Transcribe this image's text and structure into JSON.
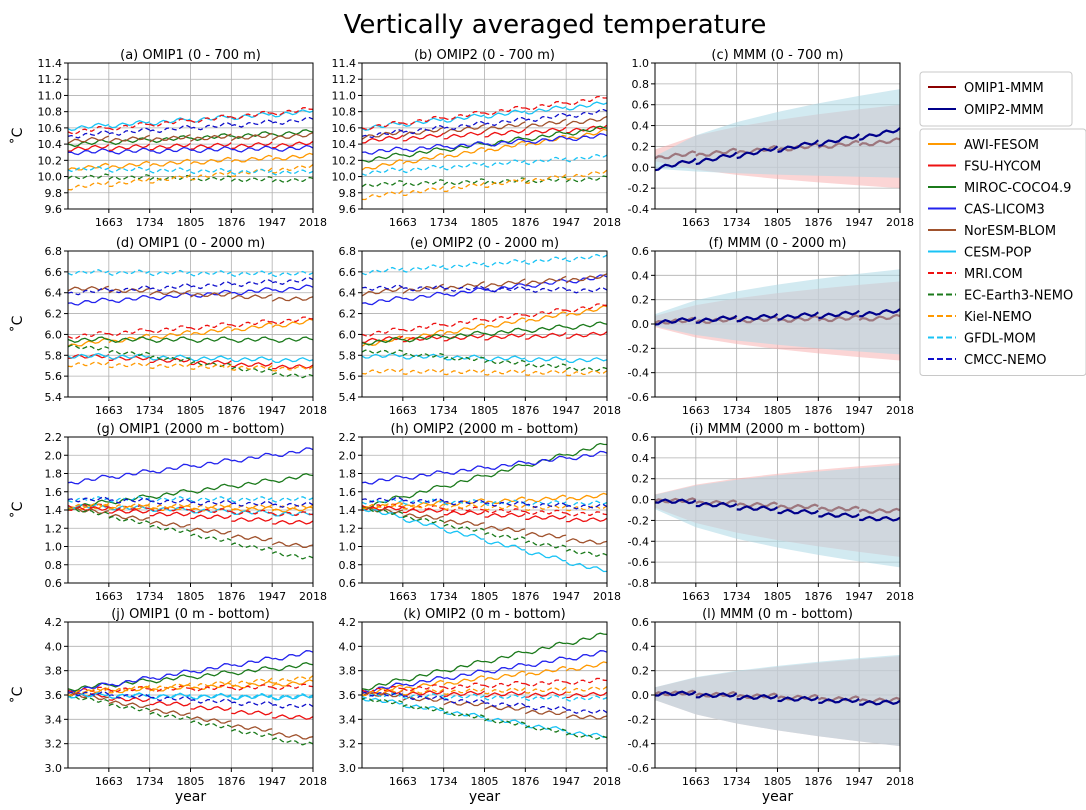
{
  "title": "Vertically averaged temperature",
  "xlabel": "year",
  "years": [
    1663,
    1734,
    1805,
    1876,
    1947,
    2018
  ],
  "xlim": [
    1592,
    2018
  ],
  "colors": {
    "AWI-FESOM": "#ff9900",
    "FSU-HYCOM": "#ee1111",
    "MIROC-COCO4.9": "#1b7a1b",
    "CAS-LICOM3": "#2222ee",
    "NorESM-BLOM": "#a0522d",
    "CESM-POP": "#19c3f5",
    "MRI.COM": "#ee1111",
    "EC-Earth3-NEMO": "#1b7a1b",
    "Kiel-NEMO": "#ff9900",
    "GFDL-MOM": "#19c3f5",
    "CMCC-NEMO": "#1111cc",
    "OMIP1-MMM": "#8b0000",
    "OMIP2-MMM": "#00008b",
    "omip1_spread": "#f7b2b2",
    "omip2_spread": "#add8e6"
  },
  "legend": {
    "mmm": [
      {
        "name": "OMIP1-MMM",
        "dash": false
      },
      {
        "name": "OMIP2-MMM",
        "dash": false
      }
    ],
    "models": [
      {
        "name": "AWI-FESOM",
        "dash": false
      },
      {
        "name": "FSU-HYCOM",
        "dash": false
      },
      {
        "name": "MIROC-COCO4.9",
        "dash": false
      },
      {
        "name": "CAS-LICOM3",
        "dash": false
      },
      {
        "name": "NorESM-BLOM",
        "dash": false
      },
      {
        "name": "CESM-POP",
        "dash": false
      },
      {
        "name": "MRI.COM",
        "dash": true
      },
      {
        "name": "EC-Earth3-NEMO",
        "dash": true
      },
      {
        "name": "Kiel-NEMO",
        "dash": true
      },
      {
        "name": "GFDL-MOM",
        "dash": true
      },
      {
        "name": "CMCC-NEMO",
        "dash": true
      }
    ]
  },
  "chart_data": [
    {
      "type": "line",
      "title": "(a) OMIP1 (0 - 700 m)",
      "ylabel": "˚C",
      "ylim": [
        9.6,
        11.4
      ],
      "yticks": [
        9.6,
        9.8,
        10.0,
        10.2,
        10.4,
        10.6,
        10.8,
        11.0,
        11.2,
        11.4
      ],
      "xlabel": "",
      "series": [
        {
          "name": "AWI-FESOM",
          "start": 10.1,
          "end": 10.25,
          "cycles": 6
        },
        {
          "name": "FSU-HYCOM",
          "start": 10.35,
          "end": 10.4,
          "cycles": 6
        },
        {
          "name": "MIROC-COCO4.9",
          "start": 10.4,
          "end": 10.55,
          "cycles": 6
        },
        {
          "name": "CAS-LICOM3",
          "start": 10.3,
          "end": 10.35,
          "cycles": 6
        },
        {
          "name": "NorESM-BLOM",
          "start": 10.45,
          "end": 10.5,
          "cycles": 6
        },
        {
          "name": "CESM-POP",
          "start": 10.6,
          "end": 10.8,
          "cycles": 6
        },
        {
          "name": "MRI.COM",
          "start": 10.55,
          "end": 10.83,
          "cycles": 6
        },
        {
          "name": "EC-Earth3-NEMO",
          "start": 10.0,
          "end": 9.95,
          "cycles": 6
        },
        {
          "name": "Kiel-NEMO",
          "start": 9.87,
          "end": 10.12,
          "cycles": 6
        },
        {
          "name": "GFDL-MOM",
          "start": 10.1,
          "end": 10.05,
          "cycles": 6
        },
        {
          "name": "CMCC-NEMO",
          "start": 10.5,
          "end": 10.7,
          "cycles": 6
        }
      ]
    },
    {
      "type": "line",
      "title": "(b) OMIP2 (0 - 700 m)",
      "ylabel": "",
      "ylim": [
        9.6,
        11.4
      ],
      "yticks": [
        9.6,
        9.8,
        10.0,
        10.2,
        10.4,
        10.6,
        10.8,
        11.0,
        11.2,
        11.4
      ],
      "xlabel": "",
      "series": [
        {
          "name": "AWI-FESOM",
          "start": 10.1,
          "end": 10.55,
          "cycles": 6
        },
        {
          "name": "FSU-HYCOM",
          "start": 10.45,
          "end": 10.6,
          "cycles": 6
        },
        {
          "name": "MIROC-COCO4.9",
          "start": 10.2,
          "end": 10.6,
          "cycles": 6
        },
        {
          "name": "CAS-LICOM3",
          "start": 10.3,
          "end": 10.5,
          "cycles": 6
        },
        {
          "name": "NorESM-BLOM",
          "start": 10.5,
          "end": 10.7,
          "cycles": 6
        },
        {
          "name": "CESM-POP",
          "start": 10.6,
          "end": 10.9,
          "cycles": 6
        },
        {
          "name": "MRI.COM",
          "start": 10.6,
          "end": 10.97,
          "cycles": 6
        },
        {
          "name": "EC-Earth3-NEMO",
          "start": 9.9,
          "end": 9.97,
          "cycles": 6
        },
        {
          "name": "Kiel-NEMO",
          "start": 9.75,
          "end": 10.05,
          "cycles": 6
        },
        {
          "name": "GFDL-MOM",
          "start": 10.05,
          "end": 10.25,
          "cycles": 6
        },
        {
          "name": "CMCC-NEMO",
          "start": 10.5,
          "end": 10.8,
          "cycles": 6
        }
      ]
    },
    {
      "type": "area",
      "title": "(c) MMM (0 - 700 m)",
      "ylabel": "",
      "ylim": [
        -0.4,
        1.0
      ],
      "yticks": [
        -0.4,
        -0.2,
        0.0,
        0.2,
        0.4,
        0.6,
        0.8,
        1.0
      ],
      "xlabel": "",
      "series": [
        {
          "name": "OMIP1-MMM",
          "start": 0.1,
          "end": 0.25,
          "cycles": 6,
          "spread_lo": -0.2,
          "spread_hi": 0.6
        },
        {
          "name": "OMIP2-MMM",
          "start": 0.0,
          "end": 0.35,
          "cycles": 6,
          "spread_lo": -0.1,
          "spread_hi": 0.75
        }
      ]
    },
    {
      "type": "line",
      "title": "(d) OMIP1 (0 - 2000 m)",
      "ylabel": "˚C",
      "ylim": [
        5.4,
        6.8
      ],
      "yticks": [
        5.4,
        5.6,
        5.8,
        6.0,
        6.2,
        6.4,
        6.6,
        6.8
      ],
      "xlabel": "",
      "series": [
        {
          "name": "AWI-FESOM",
          "start": 5.9,
          "end": 6.12,
          "cycles": 6
        },
        {
          "name": "FSU-HYCOM",
          "start": 5.8,
          "end": 5.68,
          "cycles": 6
        },
        {
          "name": "MIROC-COCO4.9",
          "start": 5.95,
          "end": 5.95,
          "cycles": 6
        },
        {
          "name": "CAS-LICOM3",
          "start": 6.3,
          "end": 6.45,
          "cycles": 6
        },
        {
          "name": "NorESM-BLOM",
          "start": 6.45,
          "end": 6.33,
          "cycles": 6
        },
        {
          "name": "CESM-POP",
          "start": 5.8,
          "end": 5.75,
          "cycles": 6
        },
        {
          "name": "MRI.COM",
          "start": 5.98,
          "end": 6.15,
          "cycles": 6
        },
        {
          "name": "EC-Earth3-NEMO",
          "start": 5.9,
          "end": 5.58,
          "cycles": 6
        },
        {
          "name": "Kiel-NEMO",
          "start": 5.72,
          "end": 5.67,
          "cycles": 6
        },
        {
          "name": "GFDL-MOM",
          "start": 6.6,
          "end": 6.58,
          "cycles": 6
        },
        {
          "name": "CMCC-NEMO",
          "start": 6.4,
          "end": 6.52,
          "cycles": 6
        }
      ]
    },
    {
      "type": "line",
      "title": "(e) OMIP2 (0 - 2000 m)",
      "ylabel": "",
      "ylim": [
        5.4,
        6.8
      ],
      "yticks": [
        5.4,
        5.6,
        5.8,
        6.0,
        6.2,
        6.4,
        6.6,
        6.8
      ],
      "xlabel": "",
      "series": [
        {
          "name": "AWI-FESOM",
          "start": 5.9,
          "end": 6.25,
          "cycles": 6
        },
        {
          "name": "FSU-HYCOM",
          "start": 5.95,
          "end": 6.0,
          "cycles": 6
        },
        {
          "name": "MIROC-COCO4.9",
          "start": 5.92,
          "end": 6.1,
          "cycles": 6
        },
        {
          "name": "CAS-LICOM3",
          "start": 6.3,
          "end": 6.55,
          "cycles": 6
        },
        {
          "name": "NorESM-BLOM",
          "start": 6.4,
          "end": 6.55,
          "cycles": 6
        },
        {
          "name": "CESM-POP",
          "start": 5.8,
          "end": 5.75,
          "cycles": 6
        },
        {
          "name": "MRI.COM",
          "start": 6.0,
          "end": 6.28,
          "cycles": 6
        },
        {
          "name": "EC-Earth3-NEMO",
          "start": 5.85,
          "end": 5.65,
          "cycles": 6
        },
        {
          "name": "Kiel-NEMO",
          "start": 5.65,
          "end": 5.63,
          "cycles": 6
        },
        {
          "name": "GFDL-MOM",
          "start": 6.6,
          "end": 6.75,
          "cycles": 6
        },
        {
          "name": "CMCC-NEMO",
          "start": 6.45,
          "end": 6.42,
          "cycles": 6
        }
      ]
    },
    {
      "type": "area",
      "title": "(f) MMM (0 - 2000 m)",
      "ylabel": "",
      "ylim": [
        -0.6,
        0.6
      ],
      "yticks": [
        -0.6,
        -0.4,
        -0.2,
        0.0,
        0.2,
        0.4,
        0.6
      ],
      "xlabel": "",
      "series": [
        {
          "name": "OMIP1-MMM",
          "start": 0.02,
          "end": 0.05,
          "cycles": 6,
          "spread_lo": -0.3,
          "spread_hi": 0.35
        },
        {
          "name": "OMIP2-MMM",
          "start": 0.02,
          "end": 0.1,
          "cycles": 6,
          "spread_lo": -0.25,
          "spread_hi": 0.45
        }
      ]
    },
    {
      "type": "line",
      "title": "(g) OMIP1 (2000 m - bottom)",
      "ylabel": "˚C",
      "ylim": [
        0.6,
        2.2
      ],
      "yticks": [
        0.6,
        0.8,
        1.0,
        1.2,
        1.4,
        1.6,
        1.8,
        2.0,
        2.2
      ],
      "xlabel": "",
      "series": [
        {
          "name": "AWI-FESOM",
          "start": 1.43,
          "end": 1.4,
          "cycles": 6
        },
        {
          "name": "FSU-HYCOM",
          "start": 1.43,
          "end": 1.25,
          "cycles": 6
        },
        {
          "name": "MIROC-COCO4.9",
          "start": 1.43,
          "end": 1.78,
          "cycles": 6
        },
        {
          "name": "CAS-LICOM3",
          "start": 1.7,
          "end": 2.06,
          "cycles": 6
        },
        {
          "name": "NorESM-BLOM",
          "start": 1.43,
          "end": 0.98,
          "cycles": 6
        },
        {
          "name": "CESM-POP",
          "start": 1.45,
          "end": 1.35,
          "cycles": 6
        },
        {
          "name": "MRI.COM",
          "start": 1.45,
          "end": 1.35,
          "cycles": 6
        },
        {
          "name": "EC-Earth3-NEMO",
          "start": 1.43,
          "end": 0.85,
          "cycles": 6
        },
        {
          "name": "Kiel-NEMO",
          "start": 1.45,
          "end": 1.43,
          "cycles": 6
        },
        {
          "name": "GFDL-MOM",
          "start": 1.52,
          "end": 1.52,
          "cycles": 6
        },
        {
          "name": "CMCC-NEMO",
          "start": 1.52,
          "end": 1.45,
          "cycles": 6
        }
      ]
    },
    {
      "type": "line",
      "title": "(h) OMIP2 (2000 m - bottom)",
      "ylabel": "",
      "ylim": [
        0.6,
        2.2
      ],
      "yticks": [
        0.6,
        0.8,
        1.0,
        1.2,
        1.4,
        1.6,
        1.8,
        2.0,
        2.2
      ],
      "xlabel": "",
      "series": [
        {
          "name": "AWI-FESOM",
          "start": 1.43,
          "end": 1.55,
          "cycles": 6
        },
        {
          "name": "FSU-HYCOM",
          "start": 1.43,
          "end": 1.28,
          "cycles": 6
        },
        {
          "name": "MIROC-COCO4.9",
          "start": 1.43,
          "end": 2.12,
          "cycles": 6
        },
        {
          "name": "CAS-LICOM3",
          "start": 1.7,
          "end": 2.02,
          "cycles": 6
        },
        {
          "name": "NorESM-BLOM",
          "start": 1.43,
          "end": 1.02,
          "cycles": 6
        },
        {
          "name": "CESM-POP",
          "start": 1.43,
          "end": 0.72,
          "cycles": 6
        },
        {
          "name": "MRI.COM",
          "start": 1.45,
          "end": 1.35,
          "cycles": 6
        },
        {
          "name": "EC-Earth3-NEMO",
          "start": 1.43,
          "end": 0.88,
          "cycles": 6
        },
        {
          "name": "Kiel-NEMO",
          "start": 1.45,
          "end": 1.42,
          "cycles": 6
        },
        {
          "name": "GFDL-MOM",
          "start": 1.5,
          "end": 1.47,
          "cycles": 6
        },
        {
          "name": "CMCC-NEMO",
          "start": 1.52,
          "end": 1.43,
          "cycles": 6
        }
      ]
    },
    {
      "type": "area",
      "title": "(i) MMM (2000 m - bottom)",
      "ylabel": "",
      "ylim": [
        -0.8,
        0.6
      ],
      "yticks": [
        -0.8,
        -0.6,
        -0.4,
        -0.2,
        0.0,
        0.2,
        0.4,
        0.6
      ],
      "xlabel": "",
      "series": [
        {
          "name": "OMIP1-MMM",
          "start": 0.0,
          "end": -0.12,
          "cycles": 6,
          "spread_lo": -0.55,
          "spread_hi": 0.35
        },
        {
          "name": "OMIP2-MMM",
          "start": 0.0,
          "end": -0.2,
          "cycles": 6,
          "spread_lo": -0.65,
          "spread_hi": 0.33
        }
      ]
    },
    {
      "type": "line",
      "title": "(j) OMIP1 (0 m - bottom)",
      "ylabel": "˚C",
      "ylim": [
        3.0,
        4.2
      ],
      "yticks": [
        3.0,
        3.2,
        3.4,
        3.6,
        3.8,
        4.0,
        4.2
      ],
      "xlabel": "year",
      "series": [
        {
          "name": "AWI-FESOM",
          "start": 3.62,
          "end": 3.7,
          "cycles": 6
        },
        {
          "name": "FSU-HYCOM",
          "start": 3.62,
          "end": 3.4,
          "cycles": 6
        },
        {
          "name": "MIROC-COCO4.9",
          "start": 3.65,
          "end": 3.85,
          "cycles": 6
        },
        {
          "name": "CAS-LICOM3",
          "start": 3.63,
          "end": 3.95,
          "cycles": 6
        },
        {
          "name": "NorESM-BLOM",
          "start": 3.62,
          "end": 3.23,
          "cycles": 6
        },
        {
          "name": "CESM-POP",
          "start": 3.6,
          "end": 3.58,
          "cycles": 6
        },
        {
          "name": "MRI.COM",
          "start": 3.64,
          "end": 3.67,
          "cycles": 6
        },
        {
          "name": "EC-Earth3-NEMO",
          "start": 3.6,
          "end": 3.18,
          "cycles": 6
        },
        {
          "name": "Kiel-NEMO",
          "start": 3.62,
          "end": 3.74,
          "cycles": 6
        },
        {
          "name": "GFDL-MOM",
          "start": 3.6,
          "end": 3.59,
          "cycles": 6
        },
        {
          "name": "CMCC-NEMO",
          "start": 3.62,
          "end": 3.5,
          "cycles": 6
        }
      ]
    },
    {
      "type": "line",
      "title": "(k) OMIP2 (0 m - bottom)",
      "ylabel": "",
      "ylim": [
        3.0,
        4.2
      ],
      "yticks": [
        3.0,
        3.2,
        3.4,
        3.6,
        3.8,
        4.0,
        4.2
      ],
      "xlabel": "year",
      "series": [
        {
          "name": "AWI-FESOM",
          "start": 3.62,
          "end": 3.85,
          "cycles": 6
        },
        {
          "name": "FSU-HYCOM",
          "start": 3.62,
          "end": 3.6,
          "cycles": 6
        },
        {
          "name": "MIROC-COCO4.9",
          "start": 3.65,
          "end": 4.1,
          "cycles": 6
        },
        {
          "name": "CAS-LICOM3",
          "start": 3.63,
          "end": 3.95,
          "cycles": 6
        },
        {
          "name": "NorESM-BLOM",
          "start": 3.62,
          "end": 3.4,
          "cycles": 6
        },
        {
          "name": "CESM-POP",
          "start": 3.58,
          "end": 3.25,
          "cycles": 6
        },
        {
          "name": "MRI.COM",
          "start": 3.64,
          "end": 3.72,
          "cycles": 6
        },
        {
          "name": "EC-Earth3-NEMO",
          "start": 3.58,
          "end": 3.23,
          "cycles": 6
        },
        {
          "name": "Kiel-NEMO",
          "start": 3.62,
          "end": 3.65,
          "cycles": 6
        },
        {
          "name": "GFDL-MOM",
          "start": 3.6,
          "end": 3.57,
          "cycles": 6
        },
        {
          "name": "CMCC-NEMO",
          "start": 3.62,
          "end": 3.45,
          "cycles": 6
        }
      ]
    },
    {
      "type": "area",
      "title": "(l) MMM (0 m - bottom)",
      "ylabel": "",
      "ylim": [
        -0.6,
        0.6
      ],
      "yticks": [
        -0.6,
        -0.4,
        -0.2,
        0.0,
        0.2,
        0.4,
        0.6
      ],
      "xlabel": "year",
      "series": [
        {
          "name": "OMIP1-MMM",
          "start": 0.02,
          "end": -0.05,
          "cycles": 6,
          "spread_lo": -0.42,
          "spread_hi": 0.32
        },
        {
          "name": "OMIP2-MMM",
          "start": 0.02,
          "end": -0.07,
          "cycles": 6,
          "spread_lo": -0.42,
          "spread_hi": 0.33
        }
      ]
    }
  ]
}
